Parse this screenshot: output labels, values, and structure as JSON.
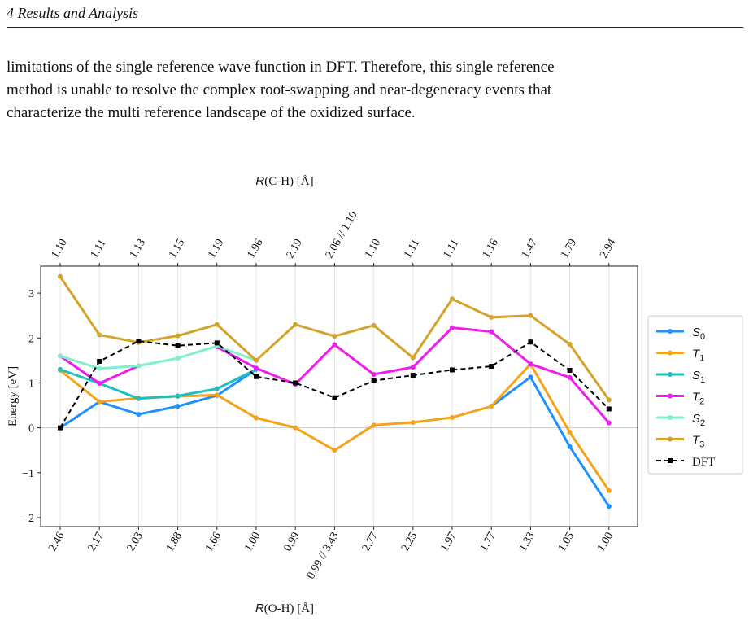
{
  "header": {
    "section": "4   Results and Analysis"
  },
  "paragraph": {
    "lines": [
      "limitations of the single reference wave function in DFT. Therefore, this single reference",
      "method is unable to resolve the complex root-swapping and near-degeneracy events that",
      "characterize the multi reference landscape of the oxidized surface."
    ]
  },
  "colors": {
    "S0": "#1e90ff",
    "T1": "#f5a31a",
    "S1": "#1fbfbf",
    "T2": "#ee1cee",
    "S2": "#7ff0cc",
    "T3": "#d4a32b",
    "DFT": "#000000"
  },
  "chart_data": {
    "type": "line",
    "top_axis_label": "R(C-H) [Å]",
    "xlabel": "R(O-H) [Å]",
    "ylabel": "Energy [eV]",
    "ylim": [
      -2.2,
      3.6
    ],
    "yticks": [
      "3",
      "2",
      "1",
      "0",
      "−1",
      "−2"
    ],
    "ytick_values": [
      3,
      2,
      1,
      0,
      -1,
      -2
    ],
    "top_tick_labels": [
      "1.10",
      "1.11",
      "1.13",
      "1.15",
      "1.19",
      "1.96",
      "2.19",
      "2.06 // 1.10",
      "1.10",
      "1.11",
      "1.11",
      "1.16",
      "1.47",
      "1.79",
      "2.94"
    ],
    "bottom_tick_labels": [
      "2.46",
      "2.17",
      "2.03",
      "1.88",
      "1.66",
      "1.00",
      "0.99",
      "0.99 // 3.43",
      "2.77",
      "2.25",
      "1.97",
      "1.77",
      "1.33",
      "1.05",
      "1.00"
    ],
    "grid": "vertical",
    "zero_line": true,
    "legend_placement": "right",
    "series": [
      {
        "name": "S0",
        "display": "S",
        "sub": "0",
        "color_key": "S0",
        "marker": "circle",
        "dashed": false,
        "values": [
          0.0,
          0.58,
          0.3,
          0.48,
          0.72,
          1.3,
          null,
          null,
          null,
          null,
          null,
          0.48,
          1.13,
          -0.42,
          -1.75
        ]
      },
      {
        "name": "T1",
        "display": "T",
        "sub": "1",
        "color_key": "T1",
        "marker": "circle",
        "dashed": false,
        "values": [
          1.28,
          0.58,
          0.66,
          0.7,
          0.73,
          0.22,
          0.0,
          -0.5,
          0.06,
          0.12,
          0.23,
          0.48,
          1.42,
          -0.1,
          -1.4
        ]
      },
      {
        "name": "S1",
        "display": "S",
        "sub": "1",
        "color_key": "S1",
        "marker": "circle",
        "dashed": false,
        "values": [
          1.3,
          0.99,
          0.65,
          0.71,
          0.87,
          1.3,
          null,
          null,
          null,
          null,
          null,
          null,
          null,
          null,
          null
        ]
      },
      {
        "name": "T2",
        "display": "T",
        "sub": "2",
        "color_key": "T2",
        "marker": "circle",
        "dashed": false,
        "values": [
          1.6,
          0.99,
          1.38,
          null,
          1.8,
          1.33,
          0.97,
          1.85,
          1.19,
          1.35,
          2.23,
          2.14,
          1.42,
          1.12,
          0.11
        ]
      },
      {
        "name": "S2",
        "display": "S",
        "sub": "2",
        "color_key": "S2",
        "marker": "circle",
        "dashed": false,
        "values": [
          1.6,
          1.32,
          1.38,
          1.55,
          1.82,
          1.5,
          null,
          null,
          null,
          null,
          null,
          null,
          null,
          null,
          null
        ]
      },
      {
        "name": "T3",
        "display": "T",
        "sub": "3",
        "color_key": "T3",
        "marker": "circle",
        "dashed": false,
        "values": [
          3.37,
          2.07,
          1.9,
          2.05,
          2.3,
          1.5,
          2.3,
          2.04,
          2.28,
          1.56,
          2.87,
          2.46,
          2.5,
          1.86,
          0.62
        ]
      },
      {
        "name": "DFT",
        "display": "DFT",
        "sub": "",
        "color_key": "DFT",
        "marker": "square",
        "dashed": true,
        "values": [
          0.0,
          1.48,
          1.93,
          1.83,
          1.89,
          1.14,
          1.0,
          0.67,
          1.05,
          1.17,
          1.29,
          1.37,
          1.91,
          1.28,
          0.42
        ]
      }
    ]
  }
}
